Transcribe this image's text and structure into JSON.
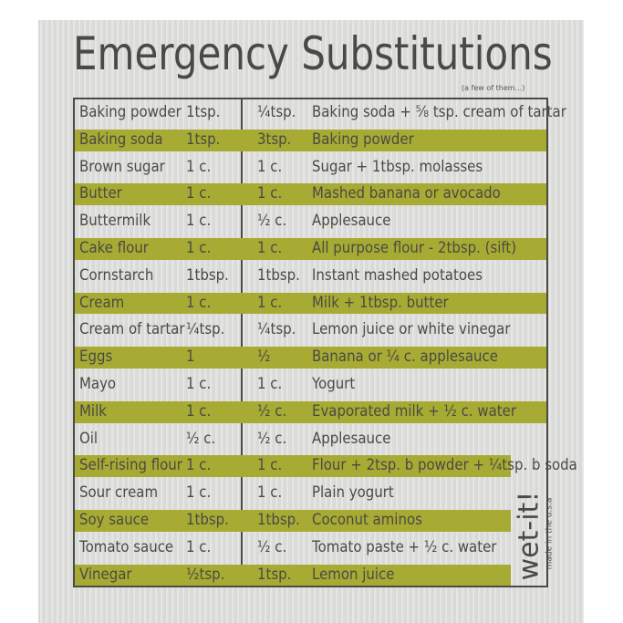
{
  "title": "Emergency Substitutions",
  "subtitle": "(a few of them...)",
  "accent_color": "#a7ab33",
  "rows": [
    [
      "Baking powder",
      "1tsp.",
      "¼tsp.",
      "Baking soda + ⅝ tsp. cream of tartar"
    ],
    [
      "Baking soda",
      "1tsp.",
      "3tsp.",
      "Baking powder"
    ],
    [
      "Brown sugar",
      "1 c.",
      "1 c.",
      "Sugar + 1tbsp. molasses"
    ],
    [
      "Butter",
      "1 c.",
      "1 c.",
      "Mashed banana or avocado"
    ],
    [
      "Buttermilk",
      "1 c.",
      "½ c.",
      "Applesauce"
    ],
    [
      "Cake flour",
      "1 c.",
      "1 c.",
      "All purpose flour - 2tbsp. (sift)"
    ],
    [
      "Cornstarch",
      "1tbsp.",
      "1tbsp.",
      "Instant mashed potatoes"
    ],
    [
      "Cream",
      "1 c.",
      "1 c.",
      "Milk + 1tbsp. butter"
    ],
    [
      "Cream of tartar",
      "¼tsp.",
      "¼tsp.",
      "Lemon juice or white vinegar"
    ],
    [
      "Eggs",
      "1",
      "½",
      "Banana or ¼ c. applesauce"
    ],
    [
      "Mayo",
      "1 c.",
      "1 c.",
      "Yogurt"
    ],
    [
      "Milk",
      "1 c.",
      "½ c.",
      "Evaporated milk + ½ c. water"
    ],
    [
      "Oil",
      "½ c.",
      "½ c.",
      "Applesauce"
    ],
    [
      "Self-rising flour",
      "1 c.",
      "1 c.",
      "Flour + 2tsp. b powder + ¼tsp. b soda"
    ],
    [
      "Sour cream",
      "1 c.",
      "1 c.",
      "Plain yogurt"
    ],
    [
      "Soy sauce",
      "1tbsp.",
      "1tbsp.",
      "Coconut aminos"
    ],
    [
      "Tomato sauce",
      "1 c.",
      "½ c.",
      "Tomato paste + ½ c. water"
    ],
    [
      "Vinegar",
      "½tsp.",
      "1tsp.",
      "Lemon juice"
    ]
  ],
  "logo": {
    "brand": "wet-it!",
    "tagline": "made in the u.s.a"
  }
}
